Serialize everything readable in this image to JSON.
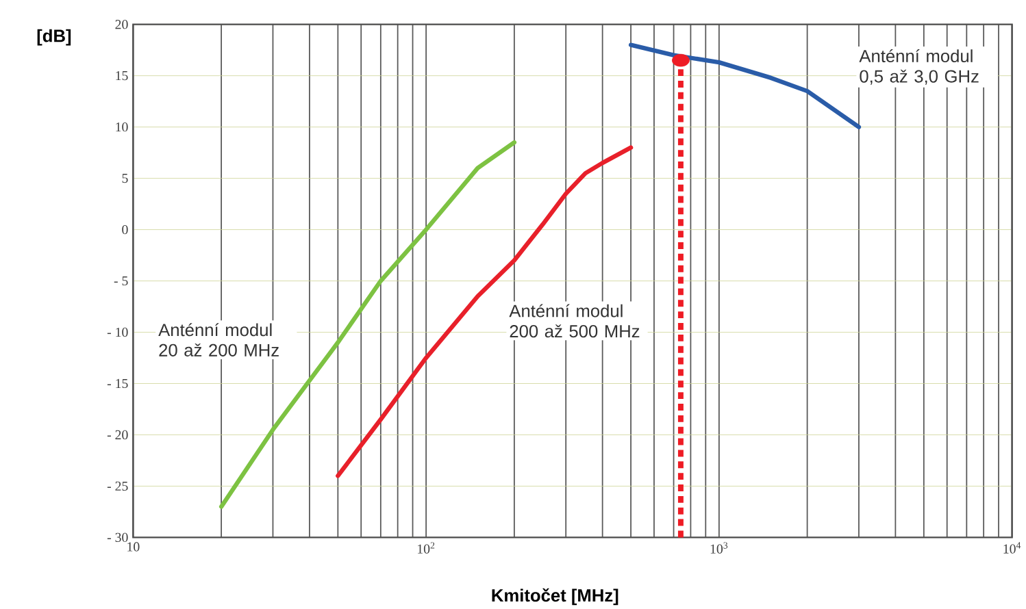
{
  "chart_data": {
    "type": "line",
    "xlabel": "Kmitočet [MHz]",
    "ylabel": "[dB]",
    "log": "x",
    "grid": true,
    "xlim": [
      10,
      10000
    ],
    "ylim": [
      -30,
      20
    ],
    "xticks": [
      10,
      {
        "value": 100,
        "label": "10$^{2}$"
      },
      {
        "value": 1000,
        "label": "10$^{3}$"
      },
      {
        "value": 10000,
        "label": "10$^{4}$"
      }
    ],
    "yticks": [
      {
        "value": -30,
        "label": "- 30"
      },
      {
        "value": -25,
        "label": "- 25"
      },
      {
        "value": -20,
        "label": "- 20"
      },
      {
        "value": -15,
        "label": "- 15"
      },
      {
        "value": -10,
        "label": "- 10"
      },
      {
        "value": -5,
        "label": "- 5"
      },
      0,
      5,
      10,
      15,
      20
    ],
    "series": [
      {
        "name": "Anténní modul 20 až 200 MHz",
        "color": "#7dc242",
        "x": [
          20,
          30,
          50,
          70,
          100,
          150,
          200
        ],
        "values": [
          -27,
          -19.5,
          -11,
          -5,
          0,
          6,
          8.5
        ]
      },
      {
        "name": "Anténní modul 200 až 500 MHz",
        "color": "#e8202a",
        "x": [
          50,
          70,
          100,
          150,
          200,
          250,
          300,
          350,
          400,
          500
        ],
        "values": [
          -24,
          -18.5,
          -12.5,
          -6.5,
          -3,
          0.5,
          3.5,
          5.5,
          6.5,
          8
        ]
      },
      {
        "name": "Anténní modul 0,5 až 3,0 GHz",
        "color": "#2a5ca8",
        "x": [
          500,
          700,
          1000,
          1500,
          2000,
          3000
        ],
        "values": [
          18,
          17,
          16.3,
          14.8,
          13.5,
          10
        ]
      },
      {
        "type": "scatter",
        "marker": "circle",
        "color": "#ee1c25",
        "x": [
          740
        ],
        "values": [
          16.5
        ]
      }
    ],
    "ref_lines": [
      {
        "axis": "x",
        "value": 740,
        "color": "#ee1c25",
        "line_style": "dotted"
      }
    ]
  }
}
